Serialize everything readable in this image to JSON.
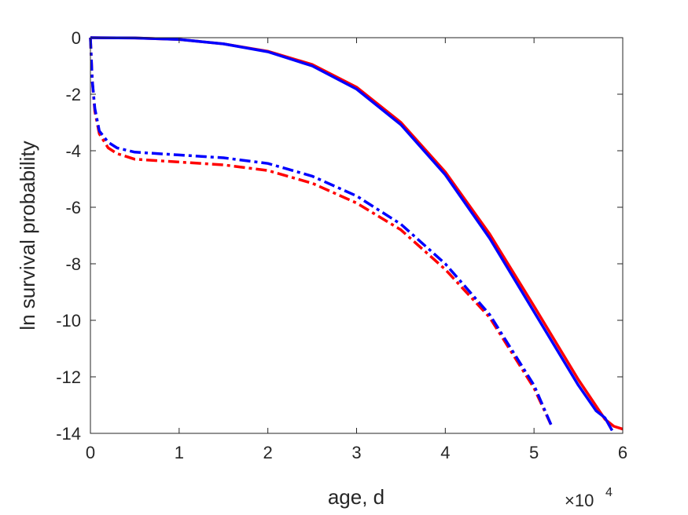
{
  "chart_data": {
    "type": "line",
    "title": "",
    "xlabel": "age, d",
    "ylabel": "ln survival probability",
    "xlim": [
      0,
      60000
    ],
    "ylim": [
      -14,
      0
    ],
    "x_tick_values": [
      0,
      10000,
      20000,
      30000,
      40000,
      50000,
      60000
    ],
    "x_tick_labels": [
      "0",
      "1",
      "2",
      "3",
      "4",
      "5",
      "6"
    ],
    "y_tick_values": [
      0,
      -2,
      -4,
      -6,
      -8,
      -10,
      -12,
      -14
    ],
    "y_tick_labels": [
      "0",
      "-2",
      "-4",
      "-6",
      "-8",
      "-10",
      "-12",
      "-14"
    ],
    "x_exponent": {
      "base": "×10",
      "power": "4"
    },
    "grid": false,
    "legend": "none",
    "series": [
      {
        "color": "#ff0000",
        "style": "solid",
        "x": [
          0,
          5000,
          10000,
          15000,
          20000,
          25000,
          30000,
          35000,
          40000,
          45000,
          50000,
          55000,
          58000,
          59000,
          60000
        ],
        "y": [
          0,
          -0.01,
          -0.06,
          -0.22,
          -0.48,
          -0.95,
          -1.75,
          -3.0,
          -4.75,
          -6.95,
          -9.5,
          -12.1,
          -13.5,
          -13.75,
          -13.85
        ]
      },
      {
        "color": "#0000ff",
        "style": "solid",
        "x": [
          0,
          5000,
          10000,
          15000,
          20000,
          25000,
          30000,
          35000,
          40000,
          45000,
          50000,
          55000,
          57000,
          58000,
          58800
        ],
        "y": [
          0,
          -0.01,
          -0.06,
          -0.22,
          -0.5,
          -1.0,
          -1.82,
          -3.08,
          -4.85,
          -7.1,
          -9.7,
          -12.3,
          -13.2,
          -13.45,
          -13.9
        ]
      },
      {
        "color": "#ff0000",
        "style": "dashdot",
        "x": [
          0,
          200,
          500,
          1000,
          2000,
          3000,
          5000,
          10000,
          15000,
          20000,
          25000,
          30000,
          35000,
          40000,
          45000,
          50000,
          52000
        ],
        "y": [
          0,
          -1.5,
          -2.6,
          -3.4,
          -3.9,
          -4.1,
          -4.3,
          -4.4,
          -4.5,
          -4.7,
          -5.15,
          -5.85,
          -6.8,
          -8.2,
          -9.9,
          -12.4,
          -13.75
        ]
      },
      {
        "color": "#0000ff",
        "style": "dashdot",
        "x": [
          0,
          200,
          500,
          1000,
          2000,
          3000,
          5000,
          10000,
          15000,
          20000,
          25000,
          30000,
          35000,
          40000,
          45000,
          50000,
          52000
        ],
        "y": [
          0,
          -1.5,
          -2.5,
          -3.3,
          -3.7,
          -3.9,
          -4.05,
          -4.15,
          -4.25,
          -4.45,
          -4.9,
          -5.6,
          -6.6,
          -8.0,
          -9.8,
          -12.3,
          -13.75
        ]
      }
    ]
  }
}
